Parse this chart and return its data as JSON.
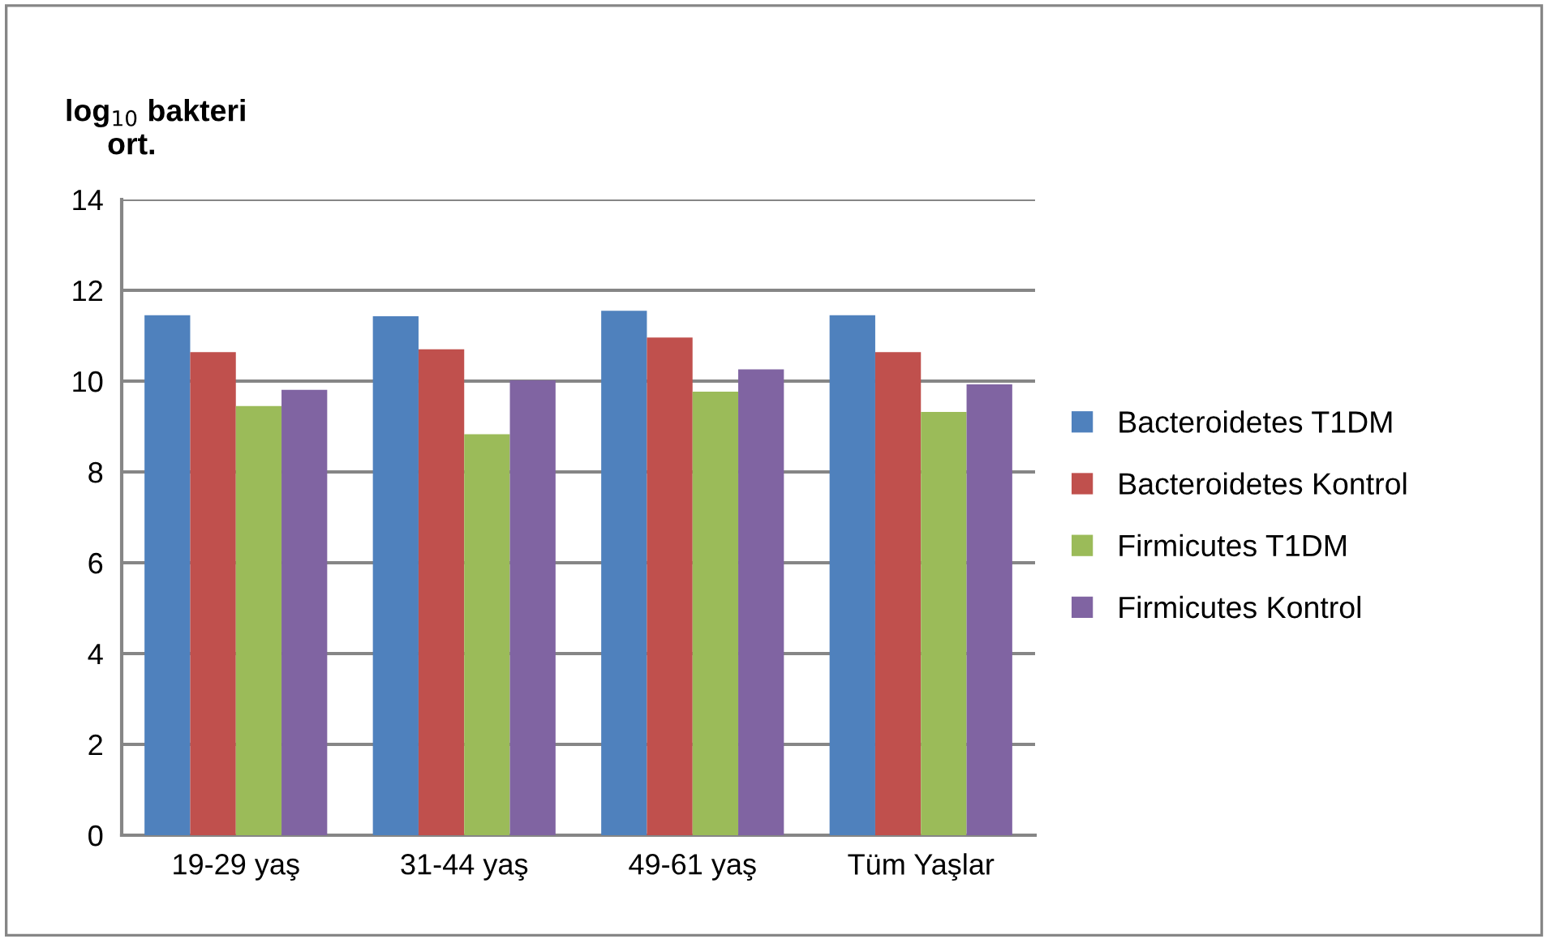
{
  "chart_data": {
    "type": "bar",
    "ylabel": "log$_{10}$ bakteri\n     ort.",
    "categories": [
      "19-29 yaş",
      "31-44 yaş",
      "49-61 yaş",
      "Tüm Yaşlar"
    ],
    "series": [
      {
        "name": "Bacteroidetes T1DM",
        "color": "#4f81bd",
        "values": [
          11.45,
          11.43,
          11.55,
          11.45
        ]
      },
      {
        "name": "Bacteroidetes Kontrol",
        "color": "#c0504d",
        "values": [
          10.64,
          10.7,
          10.96,
          10.64
        ]
      },
      {
        "name": "Firmicutes T1DM",
        "color": "#9bbb59",
        "values": [
          9.45,
          8.83,
          9.77,
          9.32
        ]
      },
      {
        "name": "Firmicutes Kontrol",
        "color": "#8064a2",
        "values": [
          9.81,
          10.02,
          10.26,
          9.93
        ]
      }
    ],
    "ylim": [
      0,
      14
    ],
    "yticks": [
      0,
      2,
      4,
      6,
      8,
      10,
      12,
      14
    ],
    "grid": "y",
    "legend": "right"
  }
}
